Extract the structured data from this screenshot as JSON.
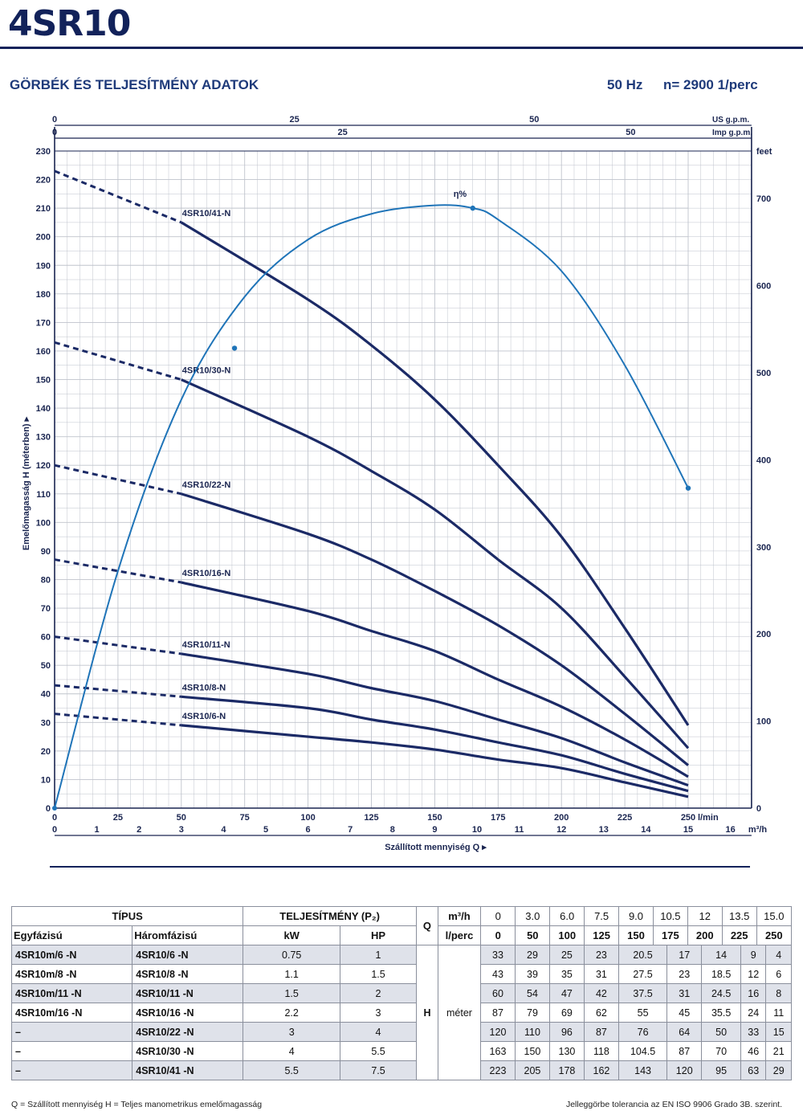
{
  "header": {
    "title": "4SR10",
    "subtitle": "GÖRBÉK ÉS TELJESÍTMÉNY ADATOK",
    "frequency": "50 Hz",
    "speed": "n= 2900 1/perc"
  },
  "chart_data": {
    "type": "line",
    "x": [
      0,
      50,
      100,
      125,
      150,
      175,
      200,
      225,
      250
    ],
    "xlabel": "Szállított mennyiség Q",
    "ylabel": "Emelőmagasság H (méterben)",
    "y2label": "feet",
    "xlim": [
      0,
      250
    ],
    "ylim": [
      0,
      230
    ],
    "x_unit": "l/min",
    "x2_unit": "m³/h",
    "top_unit_1": "US g.p.m.",
    "top_unit_2": "Imp g.p.m.",
    "x_ticks": [
      "0",
      "25",
      "50",
      "75",
      "100",
      "125",
      "150",
      "175",
      "200",
      "225",
      "250"
    ],
    "x2_ticks": [
      "0",
      "1",
      "2",
      "3",
      "4",
      "5",
      "6",
      "7",
      "8",
      "9",
      "10",
      "11",
      "12",
      "13",
      "14",
      "15",
      "16"
    ],
    "y_ticks": [
      "0",
      "10",
      "20",
      "30",
      "40",
      "50",
      "60",
      "70",
      "80",
      "90",
      "100",
      "110",
      "120",
      "130",
      "140",
      "150",
      "160",
      "170",
      "180",
      "190",
      "200",
      "210",
      "220",
      "230"
    ],
    "y2_ticks": [
      "0",
      "100",
      "200",
      "300",
      "400",
      "500",
      "600",
      "700"
    ],
    "usgpm_ticks": [
      "0",
      "25",
      "50"
    ],
    "impgpm_ticks": [
      "0",
      "25",
      "50"
    ],
    "dashed_region": [
      0,
      50
    ],
    "series": [
      {
        "name": "4SR10/6-N",
        "values": [
          33,
          29,
          25,
          23,
          20.5,
          17,
          14,
          9,
          4
        ]
      },
      {
        "name": "4SR10/8-N",
        "values": [
          43,
          39,
          35,
          31,
          27.5,
          23,
          18.5,
          12,
          6
        ]
      },
      {
        "name": "4SR10/11-N",
        "values": [
          60,
          54,
          47,
          42,
          37.5,
          31,
          24.5,
          16,
          8
        ]
      },
      {
        "name": "4SR10/16-N",
        "values": [
          87,
          79,
          69,
          62,
          55,
          45,
          35.5,
          24,
          11
        ]
      },
      {
        "name": "4SR10/22-N",
        "values": [
          120,
          110,
          96,
          87,
          76,
          64,
          50,
          33,
          15
        ]
      },
      {
        "name": "4SR10/30-N",
        "values": [
          163,
          150,
          130,
          118,
          104.5,
          87,
          70,
          46,
          21
        ]
      },
      {
        "name": "4SR10/41-N",
        "values": [
          223,
          205,
          178,
          162,
          143,
          120,
          95,
          63,
          29
        ]
      }
    ],
    "efficiency": {
      "name": "η%",
      "x": [
        0,
        25,
        50,
        75,
        100,
        125,
        150,
        165,
        175,
        200,
        225,
        250
      ],
      "values": [
        0,
        83,
        143,
        179,
        199,
        208,
        211,
        210,
        206,
        188,
        155,
        112
      ]
    },
    "colors": {
      "curve": "#1b2a66",
      "efficiency": "#1f74b8",
      "grid": "#bfc3cc"
    }
  },
  "table": {
    "h_tipus": "TÍPUS",
    "h_telj": "TELJESÍTMÉNY (P₂)",
    "h_q": "Q",
    "h_m3h": "m³/h",
    "h_lperc": "l/perc",
    "h_egy": "Egyfázisú",
    "h_harom": "Háromfázisú",
    "h_kw": "kW",
    "h_hp": "HP",
    "h_h": "H",
    "h_meter": "méter",
    "q_m3h": [
      "0",
      "3.0",
      "6.0",
      "7.5",
      "9.0",
      "10.5",
      "12",
      "13.5",
      "15.0"
    ],
    "q_lperc": [
      "0",
      "50",
      "100",
      "125",
      "150",
      "175",
      "200",
      "225",
      "250"
    ],
    "rows": [
      {
        "egy": "4SR10m/6  -N",
        "harom": "4SR10/6  -N",
        "kw": "0.75",
        "hp": "1",
        "h": [
          "33",
          "29",
          "25",
          "23",
          "20.5",
          "17",
          "14",
          "9",
          "4"
        ]
      },
      {
        "egy": "4SR10m/8  -N",
        "harom": "4SR10/8  -N",
        "kw": "1.1",
        "hp": "1.5",
        "h": [
          "43",
          "39",
          "35",
          "31",
          "27.5",
          "23",
          "18.5",
          "12",
          "6"
        ]
      },
      {
        "egy": "4SR10m/11 -N",
        "harom": "4SR10/11 -N",
        "kw": "1.5",
        "hp": "2",
        "h": [
          "60",
          "54",
          "47",
          "42",
          "37.5",
          "31",
          "24.5",
          "16",
          "8"
        ]
      },
      {
        "egy": "4SR10m/16 -N",
        "harom": "4SR10/16 -N",
        "kw": "2.2",
        "hp": "3",
        "h": [
          "87",
          "79",
          "69",
          "62",
          "55",
          "45",
          "35.5",
          "24",
          "11"
        ]
      },
      {
        "egy": "–",
        "harom": "4SR10/22 -N",
        "kw": "3",
        "hp": "4",
        "h": [
          "120",
          "110",
          "96",
          "87",
          "76",
          "64",
          "50",
          "33",
          "15"
        ]
      },
      {
        "egy": "–",
        "harom": "4SR10/30 -N",
        "kw": "4",
        "hp": "5.5",
        "h": [
          "163",
          "150",
          "130",
          "118",
          "104.5",
          "87",
          "70",
          "46",
          "21"
        ]
      },
      {
        "egy": "–",
        "harom": "4SR10/41 -N",
        "kw": "5.5",
        "hp": "7.5",
        "h": [
          "223",
          "205",
          "178",
          "162",
          "143",
          "120",
          "95",
          "63",
          "29"
        ]
      }
    ]
  },
  "footer": {
    "left": "Q = Szállított mennyiség   H = Teljes manometrikus emelőmagasság",
    "right": "Jelleggörbe tolerancia az EN ISO 9906 Grado 3B. szerint."
  }
}
